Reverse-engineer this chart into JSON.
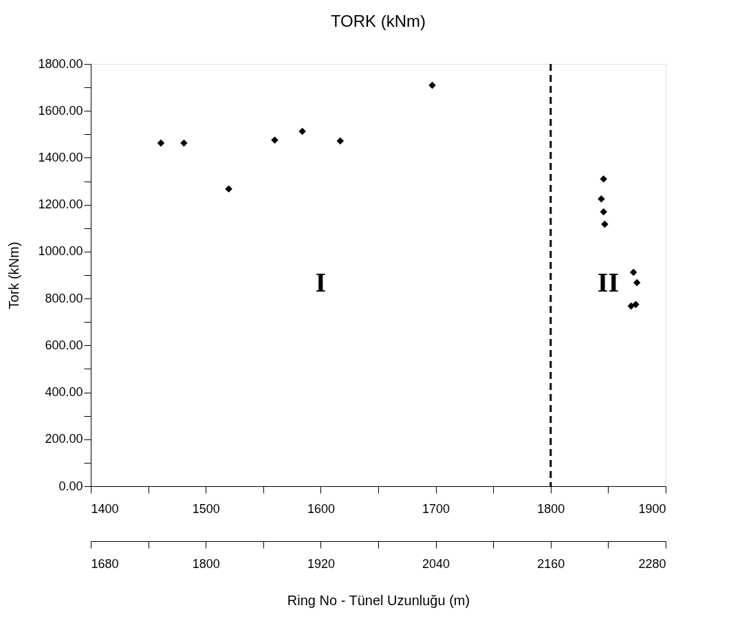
{
  "chart_data": {
    "type": "scatter",
    "title": "TORK (kNm)",
    "ylabel": "Tork (kNm)",
    "xlabel": "Ring No - Tünel Uzunluğu (m)",
    "marker": "diamond",
    "grid": false,
    "x": [
      1461,
      1481,
      1520,
      1560,
      1584,
      1617,
      1697,
      1846,
      1844,
      1846,
      1847,
      1872,
      1875,
      1870,
      1874
    ],
    "series": [
      {
        "color": "#000000",
        "values": [
          1463,
          1463,
          1267,
          1475,
          1513,
          1472,
          1709,
          1310,
          1225,
          1170,
          1117,
          912,
          868,
          768,
          775
        ]
      }
    ],
    "xlim": [
      1400,
      1900
    ],
    "xticks": [
      1400,
      {
        "value": 1450,
        "label": null
      },
      1500,
      {
        "value": 1550,
        "label": null
      },
      1600,
      {
        "value": 1650,
        "label": null
      },
      1700,
      {
        "value": 1750,
        "label": null
      },
      1800,
      {
        "value": 1850,
        "label": null
      },
      1900
    ],
    "x2lim": [
      1680,
      2280
    ],
    "x2ticks": [
      1680,
      {
        "value": 1740,
        "label": null
      },
      1800,
      {
        "value": 1860,
        "label": null
      },
      1920,
      {
        "value": 1980,
        "label": null
      },
      2040,
      {
        "value": 2100,
        "label": null
      },
      2160,
      {
        "value": 2220,
        "label": null
      },
      2280
    ],
    "ylim": [
      0,
      1800
    ],
    "yticks": [
      {
        "value": 0,
        "label": "0.00"
      },
      {
        "value": 100,
        "label": null
      },
      {
        "value": 200,
        "label": "200.00"
      },
      {
        "value": 300,
        "label": null
      },
      {
        "value": 400,
        "label": "400.00"
      },
      {
        "value": 500,
        "label": null
      },
      {
        "value": 600,
        "label": "600.00"
      },
      {
        "value": 700,
        "label": null
      },
      {
        "value": 800,
        "label": "800.00"
      },
      {
        "value": 900,
        "label": null
      },
      {
        "value": 1000,
        "label": "1000.00"
      },
      {
        "value": 1100,
        "label": null
      },
      {
        "value": 1200,
        "label": "1200.00"
      },
      {
        "value": 1300,
        "label": null
      },
      {
        "value": 1400,
        "label": "1400.00"
      },
      {
        "value": 1500,
        "label": null
      },
      {
        "value": 1600,
        "label": "1600.00"
      },
      {
        "value": 1700,
        "label": null
      },
      {
        "value": 1800,
        "label": "1800.00"
      }
    ],
    "ref_lines": [
      {
        "axis": "x",
        "value": 1800,
        "color": "#000000",
        "line_style": "dashed"
      }
    ],
    "annotations": [
      "I",
      "II"
    ]
  }
}
